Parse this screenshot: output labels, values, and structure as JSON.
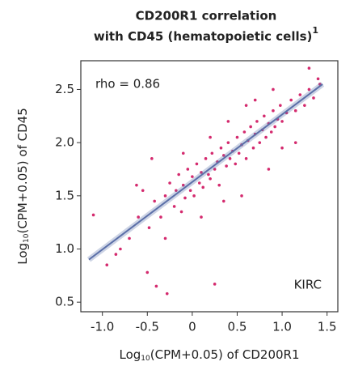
{
  "chart_data": {
    "type": "scatter",
    "title": [
      "CD200R1 correlation",
      "with CD45 (hematopoietic cells)",
      "1"
    ],
    "xlabel": [
      "Log",
      "10",
      "(CPM+0.05) of CD200R1"
    ],
    "ylabel": [
      "Log",
      "10",
      "(CPM+0.05) of CD45"
    ],
    "annotations": [
      "rho = 0.86",
      "KIRC"
    ],
    "color": "#d42a6e",
    "fit_color": "#5b6fa8",
    "xlim": [
      -1.24,
      1.62
    ],
    "ylim": [
      0.41,
      2.77
    ],
    "xticks": [
      {
        "value": -1,
        "label": "-1.0"
      },
      -0.5,
      0,
      0.5,
      {
        "value": 1,
        "label": "1.0"
      },
      1.5
    ],
    "yticks": [
      0.5,
      {
        "value": 1,
        "label": "1.0"
      },
      1.5,
      {
        "value": 2,
        "label": "2.0"
      },
      2.5
    ],
    "fit_line": {
      "x": [
        -1.15,
        1.45
      ],
      "y": [
        0.9,
        2.55
      ]
    },
    "x": [
      -1.1,
      -0.95,
      -0.85,
      -0.7,
      -0.62,
      -0.55,
      -0.5,
      -0.48,
      -0.42,
      -0.4,
      -0.35,
      -0.3,
      -0.28,
      -0.25,
      -0.2,
      -0.18,
      -0.15,
      -0.12,
      -0.1,
      -0.08,
      -0.05,
      -0.02,
      0,
      0.02,
      0.05,
      0.08,
      0.1,
      0.12,
      0.15,
      0.18,
      0.2,
      0.22,
      0.25,
      0.28,
      0.3,
      0.32,
      0.35,
      0.38,
      0.4,
      0.42,
      0.45,
      0.48,
      0.5,
      0.52,
      0.55,
      0.58,
      0.6,
      0.62,
      0.65,
      0.68,
      0.7,
      0.72,
      0.75,
      0.78,
      0.8,
      0.82,
      0.85,
      0.88,
      0.9,
      0.92,
      0.95,
      0.98,
      1.0,
      1.05,
      1.1,
      1.15,
      1.2,
      1.25,
      1.3,
      1.35,
      1.4,
      1.42,
      -0.6,
      -0.3,
      -0.1,
      0.1,
      0.25,
      0.4,
      0.55,
      0.7,
      0.85,
      1.0,
      1.15,
      1.3,
      -0.45,
      0.2,
      0.6,
      0.9,
      -0.8,
      0.35
    ],
    "values": [
      1.32,
      0.85,
      0.95,
      1.1,
      1.6,
      1.55,
      0.78,
      1.2,
      1.45,
      0.65,
      1.3,
      1.5,
      0.58,
      1.62,
      1.4,
      1.55,
      1.7,
      1.35,
      1.6,
      1.48,
      1.75,
      1.55,
      1.68,
      1.5,
      1.8,
      1.62,
      1.72,
      1.58,
      1.85,
      1.7,
      1.66,
      1.9,
      1.75,
      1.82,
      1.6,
      1.95,
      1.88,
      1.78,
      2.0,
      1.85,
      1.92,
      1.8,
      2.05,
      1.9,
      1.98,
      2.1,
      1.85,
      2.02,
      2.15,
      1.95,
      2.08,
      2.2,
      2.0,
      2.12,
      2.25,
      2.05,
      2.18,
      2.1,
      2.3,
      2.15,
      2.22,
      2.35,
      2.2,
      2.28,
      2.4,
      2.3,
      2.45,
      2.35,
      2.5,
      2.42,
      2.6,
      2.55,
      1.3,
      1.1,
      1.9,
      1.3,
      0.67,
      2.2,
      1.5,
      2.4,
      1.75,
      1.95,
      2.0,
      2.7,
      1.85,
      2.05,
      2.35,
      2.5,
      1.0,
      1.45
    ]
  }
}
